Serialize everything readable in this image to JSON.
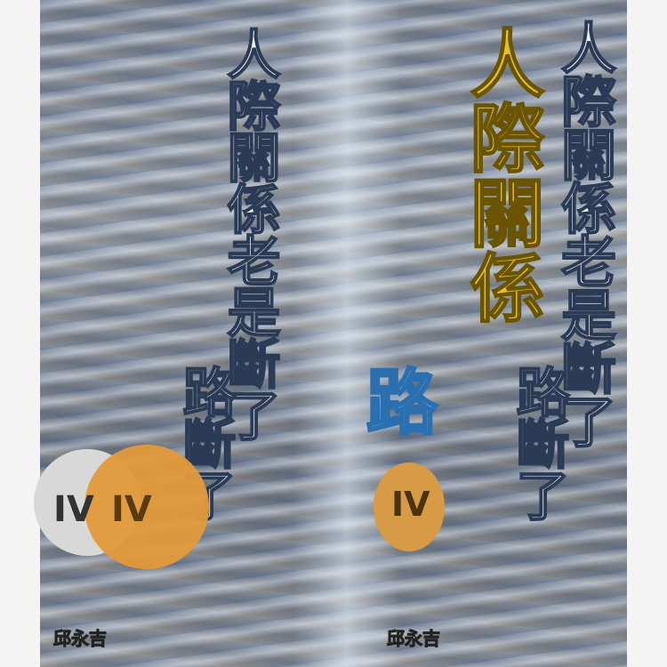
{
  "cover": {
    "title": "人際關係老是斷了",
    "title_highlight": "人際關係",
    "subtitle": "路斷了",
    "accent": "路",
    "badge": "IV",
    "author": "邱永吉"
  }
}
